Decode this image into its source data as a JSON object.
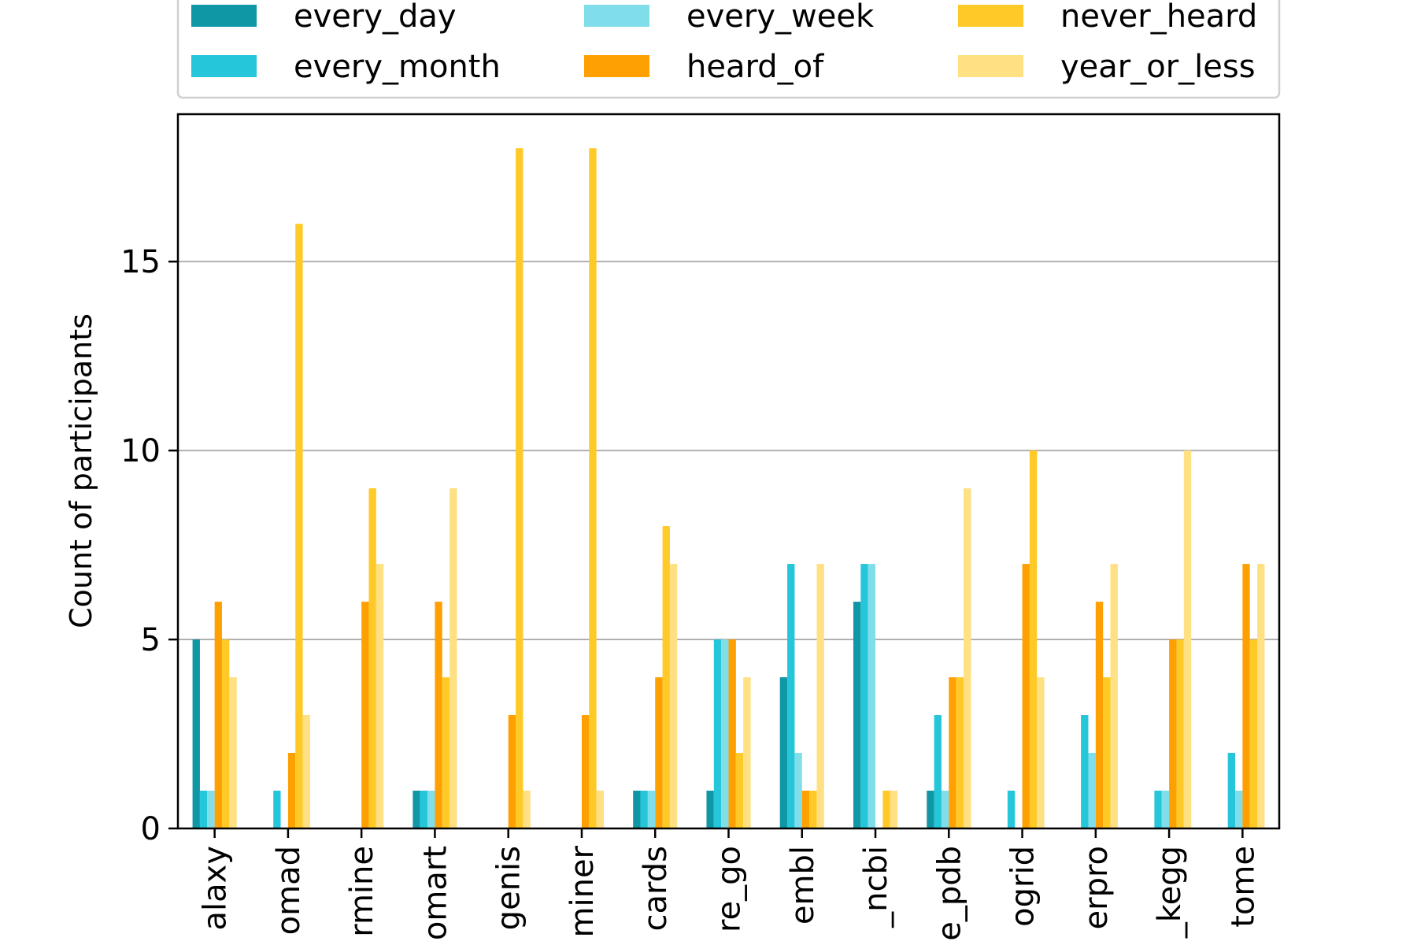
{
  "chart_data": {
    "type": "bar",
    "ylabel": "Count of participants",
    "xlabel": "",
    "ylim": [
      0,
      18.9
    ],
    "yticks": [
      0,
      5,
      10,
      15
    ],
    "grid": "y",
    "legend_position": "top",
    "categories": [
      "alaxy",
      "omad",
      "rmine",
      "omart",
      "genis",
      "miner",
      "cards",
      "re_go",
      "embl",
      "_ncbi",
      "e_pdb",
      "ogrid",
      "erpro",
      "_kegg",
      "tome"
    ],
    "series": [
      {
        "name": "every_day",
        "color": "#0f97a5",
        "values": [
          5,
          0,
          0,
          1,
          0,
          0,
          1,
          1,
          4,
          6,
          1,
          0,
          0,
          0,
          0
        ]
      },
      {
        "name": "every_month",
        "color": "#25c6da",
        "values": [
          1,
          1,
          0,
          1,
          0,
          0,
          1,
          5,
          7,
          7,
          3,
          1,
          3,
          1,
          2
        ]
      },
      {
        "name": "every_week",
        "color": "#80deea",
        "values": [
          1,
          0,
          0,
          1,
          0,
          0,
          1,
          5,
          2,
          7,
          1,
          0,
          2,
          1,
          1
        ]
      },
      {
        "name": "heard_of",
        "color": "#ffa002",
        "values": [
          6,
          2,
          6,
          6,
          3,
          3,
          4,
          5,
          1,
          0,
          4,
          7,
          6,
          5,
          7
        ]
      },
      {
        "name": "never_heard",
        "color": "#ffca28",
        "values": [
          5,
          16,
          9,
          4,
          18,
          18,
          8,
          2,
          1,
          1,
          4,
          10,
          4,
          5,
          5
        ]
      },
      {
        "name": "year_or_less",
        "color": "#ffe082",
        "values": [
          4,
          3,
          7,
          9,
          1,
          1,
          7,
          4,
          7,
          1,
          9,
          4,
          7,
          10,
          7
        ]
      }
    ]
  }
}
